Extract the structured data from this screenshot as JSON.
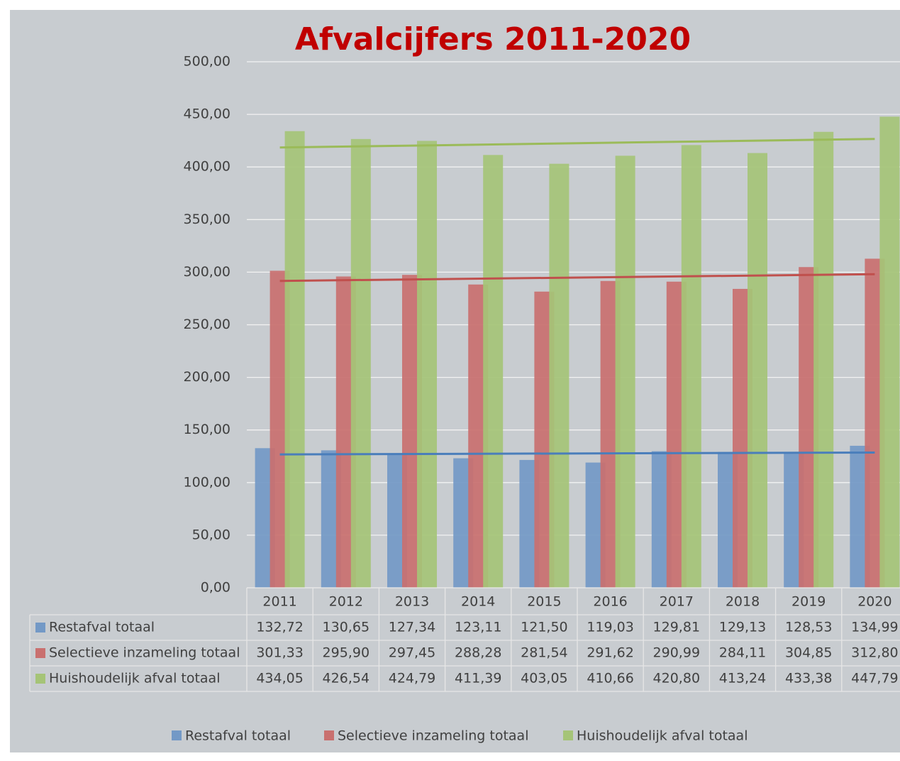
{
  "chart_data": {
    "type": "bar",
    "title": "Afvalcijfers 2011-2020",
    "categories": [
      "2011",
      "2012",
      "2013",
      "2014",
      "2015",
      "2016",
      "2017",
      "2018",
      "2019",
      "2020"
    ],
    "series": [
      {
        "name": "Restafval totaal",
        "color": "#7399c6",
        "trend_color": "#4a7ebb",
        "values": [
          132.72,
          130.65,
          127.34,
          123.11,
          121.5,
          119.03,
          129.81,
          129.13,
          128.53,
          134.99
        ],
        "value_labels": [
          "132,72",
          "130,65",
          "127,34",
          "123,11",
          "121,50",
          "119,03",
          "129,81",
          "129,13",
          "128,53",
          "134,99"
        ]
      },
      {
        "name": "Selectieve inzameling totaal",
        "color": "#c9706f",
        "trend_color": "#c0504d",
        "values": [
          301.33,
          295.9,
          297.45,
          288.28,
          281.54,
          291.62,
          290.99,
          284.11,
          304.85,
          312.8
        ],
        "value_labels": [
          "301,33",
          "295,90",
          "297,45",
          "288,28",
          "281,54",
          "291,62",
          "290,99",
          "284,11",
          "304,85",
          "312,80"
        ]
      },
      {
        "name": "Huishoudelijk afval totaal",
        "color": "#a5c477",
        "trend_color": "#9bbb59",
        "values": [
          434.05,
          426.54,
          424.79,
          411.39,
          403.05,
          410.66,
          420.8,
          413.24,
          433.38,
          447.79
        ],
        "value_labels": [
          "434,05",
          "426,54",
          "424,79",
          "411,39",
          "403,05",
          "410,66",
          "420,80",
          "413,24",
          "433,38",
          "447,79"
        ]
      }
    ],
    "ylim": [
      0,
      500
    ],
    "yticks": [
      {
        "value": 0,
        "label": "0,00"
      },
      {
        "value": 50,
        "label": "50,00"
      },
      {
        "value": 100,
        "label": "100,00"
      },
      {
        "value": 150,
        "label": "150,00"
      },
      {
        "value": 200,
        "label": "200,00"
      },
      {
        "value": 250,
        "label": "250,00"
      },
      {
        "value": 300,
        "label": "300,00"
      },
      {
        "value": 350,
        "label": "350,00"
      },
      {
        "value": 400,
        "label": "400,00"
      },
      {
        "value": 450,
        "label": "450,00"
      },
      {
        "value": 500,
        "label": "500,00"
      }
    ],
    "grid": true,
    "trendline": true,
    "data_table": true,
    "legend": "bottom"
  }
}
